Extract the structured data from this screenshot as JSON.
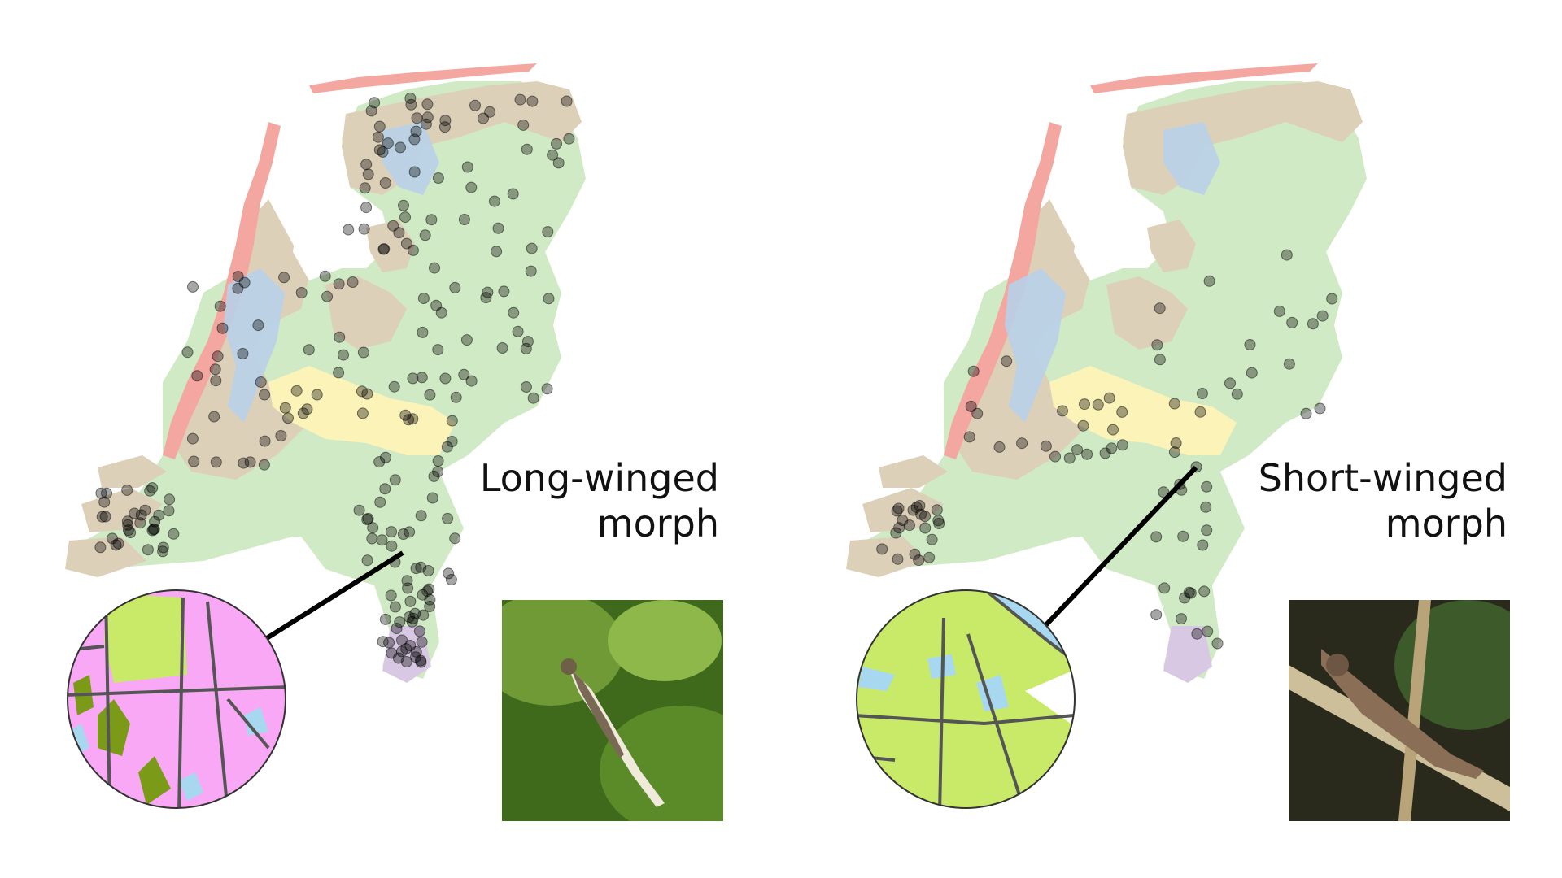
{
  "panels": [
    {
      "label_line1": "Long-winged",
      "label_line2": "morph",
      "photo": "long-winged-grasshopper-photo",
      "inset": "habitat-inset-pink"
    },
    {
      "label_line1": "Short-winged",
      "label_line2": "morph",
      "photo": "short-winged-grasshopper-photo",
      "inset": "habitat-inset-green"
    }
  ],
  "colors": {
    "sand": "#ddd0b8",
    "grass": "#cfeac4",
    "water": "#b8d0e8",
    "dune": "#f3a7a0",
    "river": "#fbf3b8",
    "south": "#d8c8e4",
    "inset_pink": "#f8a8f4",
    "inset_green": "#c8ea68",
    "inset_water": "#a8d8f0"
  }
}
